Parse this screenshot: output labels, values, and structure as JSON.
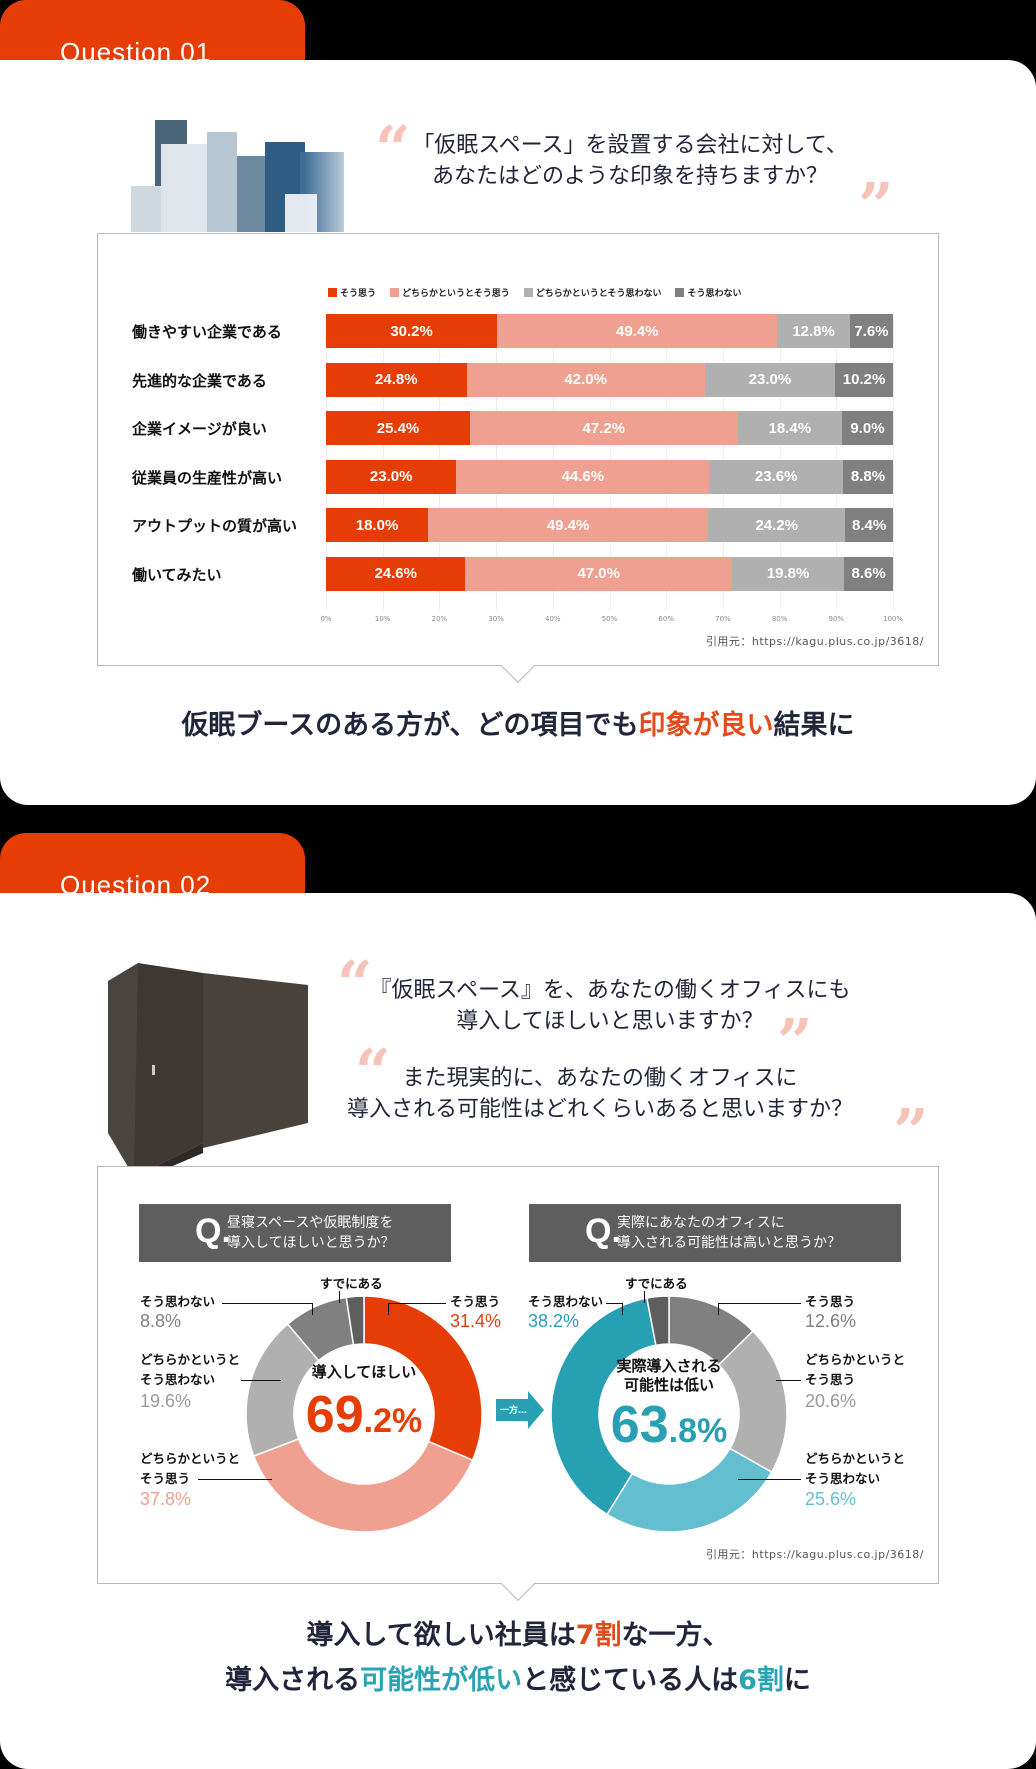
{
  "colors": {
    "accent_orange": "#e53d05",
    "agree": "#e53d05",
    "somewhat_agree": "#f0a090",
    "somewhat_disagree": "#b0b0b0",
    "disagree": "#808080",
    "teal_dark": "#27a0b3",
    "teal_light": "#63bfcf",
    "quote_mark": "#f5c3b8"
  },
  "q1": {
    "tab_label": "Question 01",
    "image_alt": "city-skyline",
    "question_line1": "「仮眠スペース」を設置する会社に対して、",
    "question_line2": "あなたはどのような印象を持ちますか？",
    "source": "引用元：https://kagu.plus.co.jp/3618/",
    "headline_part1": "仮眠ブースのある方が、どの項目でも",
    "headline_highlight": "印象が良い",
    "headline_part2": "結果に"
  },
  "q2": {
    "tab_label": "Question 02",
    "image_alt": "nap-booth",
    "question1_line1": "『仮眠スペース』を、あなたの働くオフィスにも",
    "question1_line2": "導入してほしいと思いますか？",
    "question2_line1": "また現実的に、あなたの働くオフィスに",
    "question2_line2": "導入される可能性はどれくらいあると思いますか？",
    "source": "引用元：https://kagu.plus.co.jp/3618/",
    "arrow_label": "一方…",
    "headline_line1_a": "導入して欲しい社員は",
    "headline_line1_hl": "7割",
    "headline_line1_b": "な一方、",
    "headline_line2_a": "導入される",
    "headline_line2_hl": "可能性が低い",
    "headline_line2_b": "と感じている人は",
    "headline_line2_hl2": "6割",
    "headline_line2_c": "に"
  },
  "chart_data": [
    {
      "type": "bar",
      "orientation": "horizontal",
      "stacked": true,
      "title": "「仮眠スペース」を設置する会社に対して、あなたはどのような印象を持ちますか？",
      "categories": [
        "働きやすい企業である",
        "先進的な企業である",
        "企業イメージが良い",
        "従業員の生産性が高い",
        "アウトプットの質が高い",
        "働いてみたい"
      ],
      "series": [
        {
          "name": "そう思う",
          "color": "#e53d05",
          "values": [
            30.2,
            24.8,
            25.4,
            23.0,
            18.0,
            24.6
          ]
        },
        {
          "name": "どちらかというとそう思う",
          "color": "#f0a090",
          "values": [
            49.4,
            42.0,
            47.2,
            44.6,
            49.4,
            47.0
          ]
        },
        {
          "name": "どちらかというとそう思わない",
          "color": "#b0b0b0",
          "values": [
            12.8,
            23.0,
            18.4,
            23.6,
            24.2,
            19.8
          ]
        },
        {
          "name": "そう思わない",
          "color": "#808080",
          "values": [
            7.6,
            10.2,
            9.0,
            8.8,
            8.4,
            8.6
          ]
        }
      ],
      "xticks": [
        "0%",
        "10%",
        "20%",
        "30%",
        "40%",
        "50%",
        "60%",
        "70%",
        "80%",
        "90%",
        "100%"
      ],
      "xlim": [
        0,
        100
      ],
      "legend_position": "top",
      "grid": true
    },
    {
      "type": "pie",
      "donut": true,
      "title": "昼寝スペースや仮眠制度を導入してほしいと思うか？",
      "title_prefix": "Q.",
      "title_line1": "昼寝スペースや仮眠制度を",
      "title_line2": "導入してほしいと思うか？",
      "center_label": "導入してほしい",
      "center_value_int": "69",
      "center_value_dec": ".2%",
      "labels": [
        "そう思う",
        "どちらかというとそう思う",
        "どちらかというとそう思わない",
        "そう思わない",
        "すでにある"
      ],
      "values": [
        31.4,
        37.8,
        19.6,
        8.8,
        2.4
      ],
      "value_labels": [
        "31.4%",
        "37.8%",
        "19.6%",
        "8.8%",
        ""
      ],
      "colors": [
        "#e53d05",
        "#f0a090",
        "#b0b0b0",
        "#808080",
        "#5e5e5e"
      ]
    },
    {
      "type": "pie",
      "donut": true,
      "title": "実際にあなたのオフィスに導入される可能性は高いと思うか？",
      "title_prefix": "Q.",
      "title_line1": "実際にあなたのオフィスに",
      "title_line2": "導入される可能性は高いと思うか？",
      "center_label_line1": "実際導入される",
      "center_label_line2": "可能性は低い",
      "center_value_int": "63",
      "center_value_dec": ".8%",
      "labels": [
        "そう思う",
        "どちらかというとそう思う",
        "どちらかというとそう思わない",
        "そう思わない",
        "すでにある"
      ],
      "values": [
        12.6,
        20.6,
        25.6,
        38.2,
        3.0
      ],
      "value_labels": [
        "12.6%",
        "20.6%",
        "25.6%",
        "38.2%",
        ""
      ],
      "colors": [
        "#808080",
        "#b0b0b0",
        "#63bfcf",
        "#27a0b3",
        "#5e5e5e"
      ]
    }
  ],
  "donut_labels": {
    "agree": "そう思う",
    "somewhat_agree_1": "どちらかというと",
    "somewhat_agree_2": "そう思う",
    "somewhat_disagree_1": "どちらかというと",
    "somewhat_disagree_2": "そう思わない",
    "disagree": "そう思わない",
    "already": "すでにある"
  }
}
